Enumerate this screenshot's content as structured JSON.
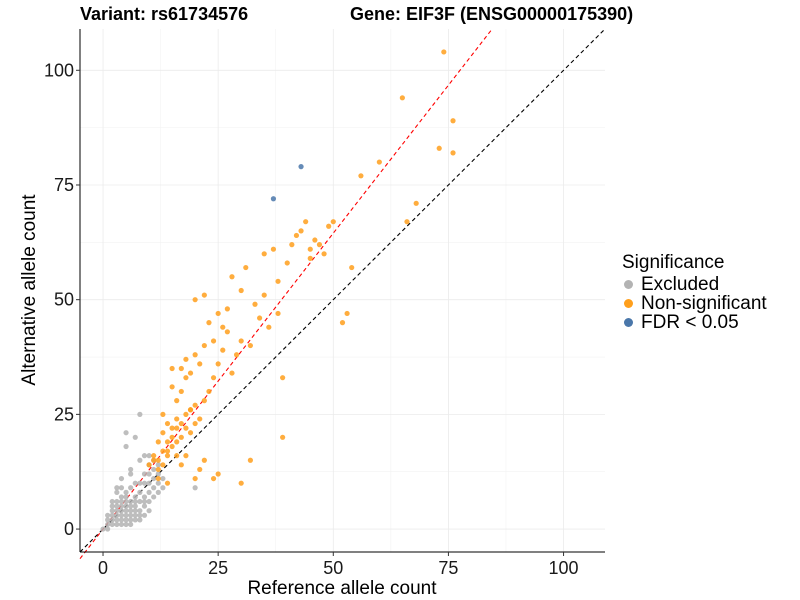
{
  "title_left": "Variant: rs61734576",
  "title_right": "Gene: EIF3F (ENSG00000175390)",
  "chart_data": {
    "type": "scatter",
    "xlabel": "Reference allele count",
    "ylabel": "Alternative allele count",
    "xlim": [
      -5,
      109
    ],
    "ylim": [
      -5,
      109
    ],
    "xticks": [
      0,
      25,
      50,
      75,
      100
    ],
    "yticks": [
      0,
      25,
      50,
      75,
      100
    ],
    "grid": true,
    "legend": {
      "title": "Significance",
      "placement": "right",
      "entries": [
        {
          "label": "Excluded",
          "color": "#b3b3b3"
        },
        {
          "label": "Non-significant",
          "color": "#ff9f1c"
        },
        {
          "label": "FDR < 0.05",
          "color": "#4a77aa"
        }
      ]
    },
    "reference_lines": [
      {
        "slope": 1.0,
        "intercept": 0,
        "color": "#000000",
        "dash": "dashed"
      },
      {
        "slope": 1.29,
        "intercept": 0,
        "color": "#ff0000",
        "dash": "dashed"
      }
    ],
    "series": [
      {
        "name": "Excluded",
        "color": "#b3b3b3",
        "x": [
          0,
          1,
          1,
          1,
          1,
          2,
          2,
          2,
          2,
          2,
          2,
          3,
          3,
          3,
          3,
          3,
          3,
          3,
          3,
          4,
          4,
          4,
          4,
          4,
          4,
          4,
          4,
          4,
          5,
          5,
          5,
          5,
          5,
          5,
          5,
          5,
          5,
          6,
          6,
          6,
          6,
          6,
          6,
          6,
          6,
          6,
          7,
          7,
          7,
          7,
          7,
          7,
          7,
          7,
          8,
          8,
          8,
          8,
          8,
          8,
          8,
          9,
          9,
          9,
          9,
          9,
          9,
          10,
          10,
          10,
          10,
          10,
          10,
          10,
          11,
          11,
          11,
          11,
          11,
          12,
          12,
          12,
          12,
          13,
          13,
          20,
          5,
          8,
          9
        ],
        "y": [
          0,
          0,
          1,
          2,
          3,
          1,
          2,
          3,
          4,
          5,
          6,
          1,
          2,
          3,
          4,
          5,
          6,
          8,
          9,
          1,
          2,
          3,
          4,
          5,
          6,
          7,
          9,
          11,
          1,
          2,
          3,
          4,
          5,
          6,
          7,
          8,
          21,
          1,
          2,
          3,
          4,
          5,
          6,
          9,
          12,
          13,
          2,
          3,
          4,
          5,
          6,
          7,
          10,
          20,
          2,
          3,
          4,
          6,
          8,
          10,
          15,
          3,
          5,
          6,
          7,
          10,
          12,
          4,
          6,
          8,
          10,
          12,
          14,
          16,
          7,
          9,
          11,
          13,
          15,
          8,
          10,
          12,
          14,
          9,
          11,
          9,
          18,
          25,
          16
        ]
      },
      {
        "name": "Non-significant",
        "color": "#ff9f1c",
        "x": [
          10,
          11,
          11,
          12,
          12,
          12,
          13,
          13,
          13,
          14,
          14,
          14,
          15,
          15,
          15,
          15,
          16,
          16,
          16,
          16,
          17,
          17,
          17,
          17,
          18,
          18,
          18,
          18,
          19,
          19,
          19,
          20,
          20,
          20,
          20,
          21,
          21,
          22,
          22,
          22,
          23,
          23,
          24,
          24,
          25,
          25,
          26,
          26,
          27,
          27,
          28,
          28,
          29,
          30,
          30,
          31,
          32,
          33,
          34,
          35,
          35,
          36,
          37,
          38,
          38,
          39,
          40,
          41,
          42,
          43,
          44,
          45,
          45,
          46,
          47,
          48,
          49,
          50,
          52,
          53,
          54,
          56,
          60,
          65,
          66,
          68,
          73,
          74,
          76,
          76,
          12,
          14,
          19,
          21,
          24,
          30,
          32,
          39,
          16,
          17,
          15,
          18,
          20,
          22,
          25,
          14,
          13
        ],
        "y": [
          14,
          15,
          16,
          13,
          15,
          19,
          14,
          17,
          21,
          16,
          19,
          23,
          18,
          20,
          22,
          31,
          19,
          22,
          24,
          28,
          20,
          23,
          30,
          35,
          22,
          25,
          33,
          37,
          21,
          26,
          34,
          23,
          27,
          38,
          50,
          24,
          36,
          28,
          40,
          51,
          30,
          45,
          33,
          41,
          47,
          36,
          39,
          44,
          43,
          48,
          34,
          55,
          38,
          41,
          52,
          57,
          40,
          49,
          46,
          51,
          60,
          44,
          61,
          47,
          54,
          33,
          58,
          62,
          64,
          65,
          67,
          59,
          61,
          63,
          62,
          60,
          66,
          67,
          45,
          47,
          57,
          77,
          80,
          94,
          67,
          71,
          83,
          104,
          89,
          82,
          11,
          10,
          26,
          13,
          11,
          10,
          15,
          20,
          16,
          14,
          35,
          16,
          11,
          15,
          12,
          17,
          25
        ]
      },
      {
        "name": "FDR < 0.05",
        "color": "#4a77aa",
        "x": [
          37,
          43
        ],
        "y": [
          72,
          79
        ]
      }
    ]
  }
}
